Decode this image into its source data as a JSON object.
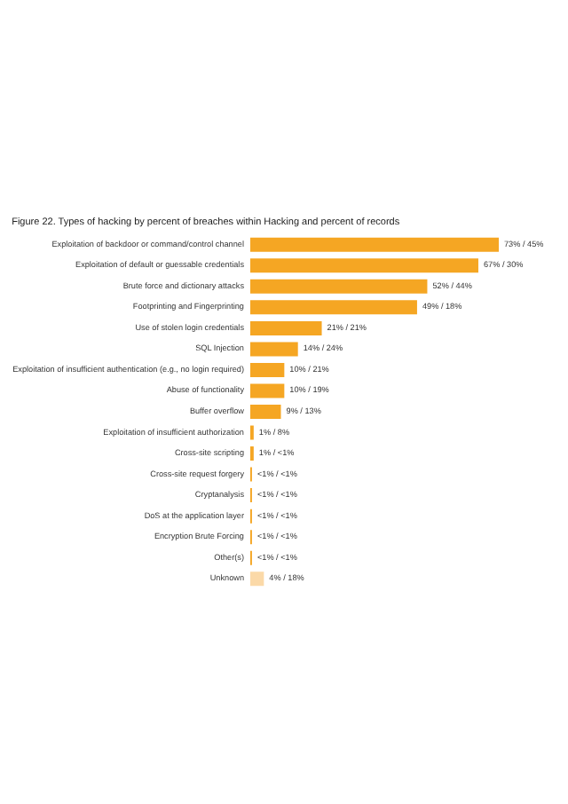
{
  "chart_data": {
    "type": "bar",
    "orientation": "horizontal",
    "title": "Figure 22. Types of hacking by percent of breaches within Hacking and percent of records",
    "categories": [
      "Exploitation of backdoor or command/control channel",
      "Exploitation of default or guessable credentials",
      "Brute force and dictionary attacks",
      "Footprinting and Fingerprinting",
      "Use of stolen login credentials",
      "SQL Injection",
      "Exploitation of insufficient authentication (e.g., no login required)",
      "Abuse of functionality",
      "Buffer overflow",
      "Exploitation of insufficient authorization",
      "Cross-site scripting",
      "Cross-site request forgery",
      "Cryptanalysis",
      "DoS at the application layer",
      "Encryption Brute Forcing",
      "Other(s)",
      "Unknown"
    ],
    "values": [
      73,
      67,
      52,
      49,
      21,
      14,
      10,
      10,
      9,
      1,
      1,
      0.5,
      0.5,
      0.5,
      0.5,
      0.5,
      4
    ],
    "colors": [
      "#f5a623",
      "#f5a623",
      "#f5a623",
      "#f5a623",
      "#f5a623",
      "#f5a623",
      "#f5a623",
      "#f5a623",
      "#f5a623",
      "#f5a623",
      "#f5a623",
      "#f5a623",
      "#f5a623",
      "#f5a623",
      "#f5a623",
      "#f5a623",
      "#fbd9a8"
    ],
    "value_labels": [
      "73% / 45%",
      "67% / 30%",
      "52% / 44%",
      "49% / 18%",
      "21% / 21%",
      "14% / 24%",
      "10% / 21%",
      "10% / 19%",
      "9% / 13%",
      "1% / 8%",
      "1% / <1%",
      "<1% / <1%",
      "<1% / <1%",
      "<1% / <1%",
      "<1% / <1%",
      "<1% / <1%",
      "4% / 18%"
    ],
    "grid": false
  }
}
